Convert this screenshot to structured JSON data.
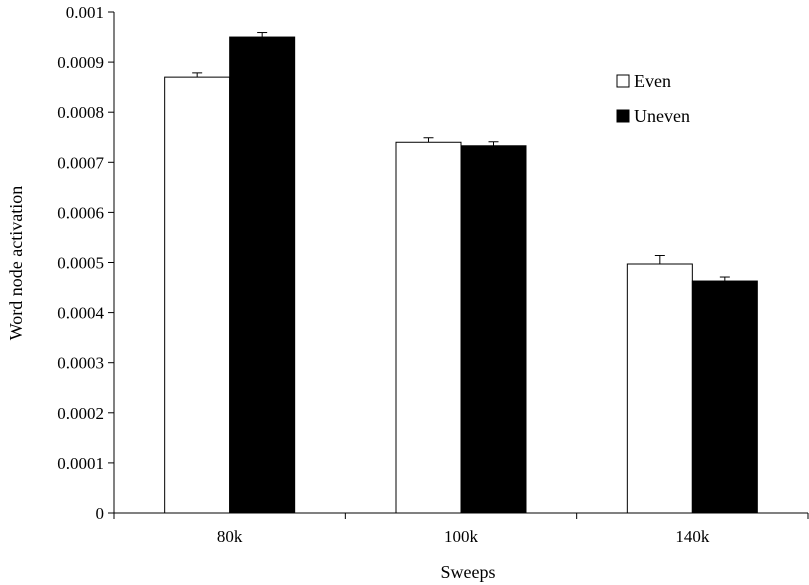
{
  "chart_data": {
    "type": "bar",
    "title": "",
    "xlabel": "Sweeps",
    "ylabel": "Word node activation",
    "categories": [
      "80k",
      "100k",
      "140k"
    ],
    "series": [
      {
        "name": "Even",
        "fill": "#ffffff",
        "values": [
          0.00087,
          0.00074,
          0.000497
        ],
        "errors": [
          8.5e-06,
          9e-06,
          1.7e-05
        ]
      },
      {
        "name": "Uneven",
        "fill": "#000000",
        "values": [
          0.00095,
          0.000733,
          0.000463
        ],
        "errors": [
          9e-06,
          8e-06,
          8e-06
        ]
      }
    ],
    "ylim": [
      0,
      0.001
    ],
    "yticks": [
      "0",
      "0.0001",
      "0.0002",
      "0.0003",
      "0.0004",
      "0.0005",
      "0.0006",
      "0.0007",
      "0.0008",
      "0.0009",
      "0.001"
    ],
    "grid": false,
    "legend_position": "top-right",
    "colors": {
      "axis": "#000000",
      "even": "#ffffff",
      "uneven": "#000000"
    }
  }
}
